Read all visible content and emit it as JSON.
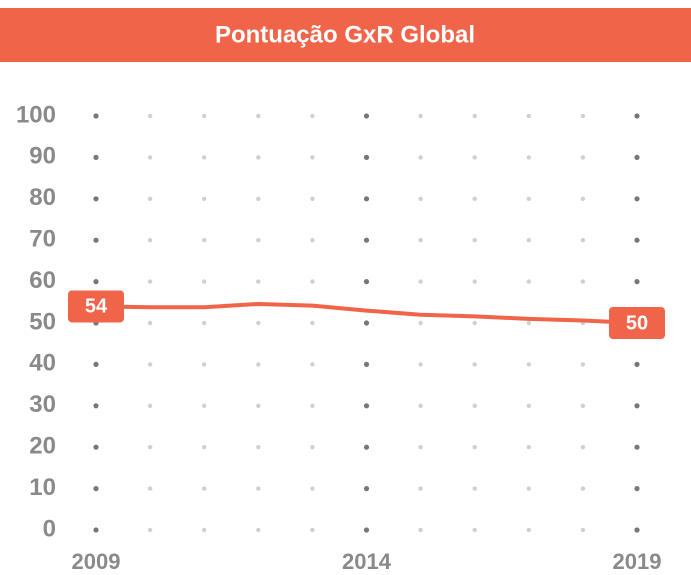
{
  "chart_data": {
    "type": "line",
    "title": "Pontuação  GxR  Global",
    "x": [
      2009,
      2010,
      2011,
      2012,
      2013,
      2014,
      2015,
      2016,
      2017,
      2018,
      2019
    ],
    "series": [
      {
        "name": "GxR",
        "color": "#f06449",
        "values": [
          54,
          53.8,
          53.8,
          54.6,
          54.2,
          53,
          52,
          51.6,
          51,
          50.6,
          50
        ]
      }
    ],
    "xlim": [
      2009,
      2019
    ],
    "xticks": [
      2009,
      2014,
      2019
    ],
    "ylim": [
      0,
      100
    ],
    "yticks": [
      0,
      10,
      20,
      30,
      40,
      50,
      60,
      70,
      80,
      90,
      100
    ],
    "grid": true
  }
}
